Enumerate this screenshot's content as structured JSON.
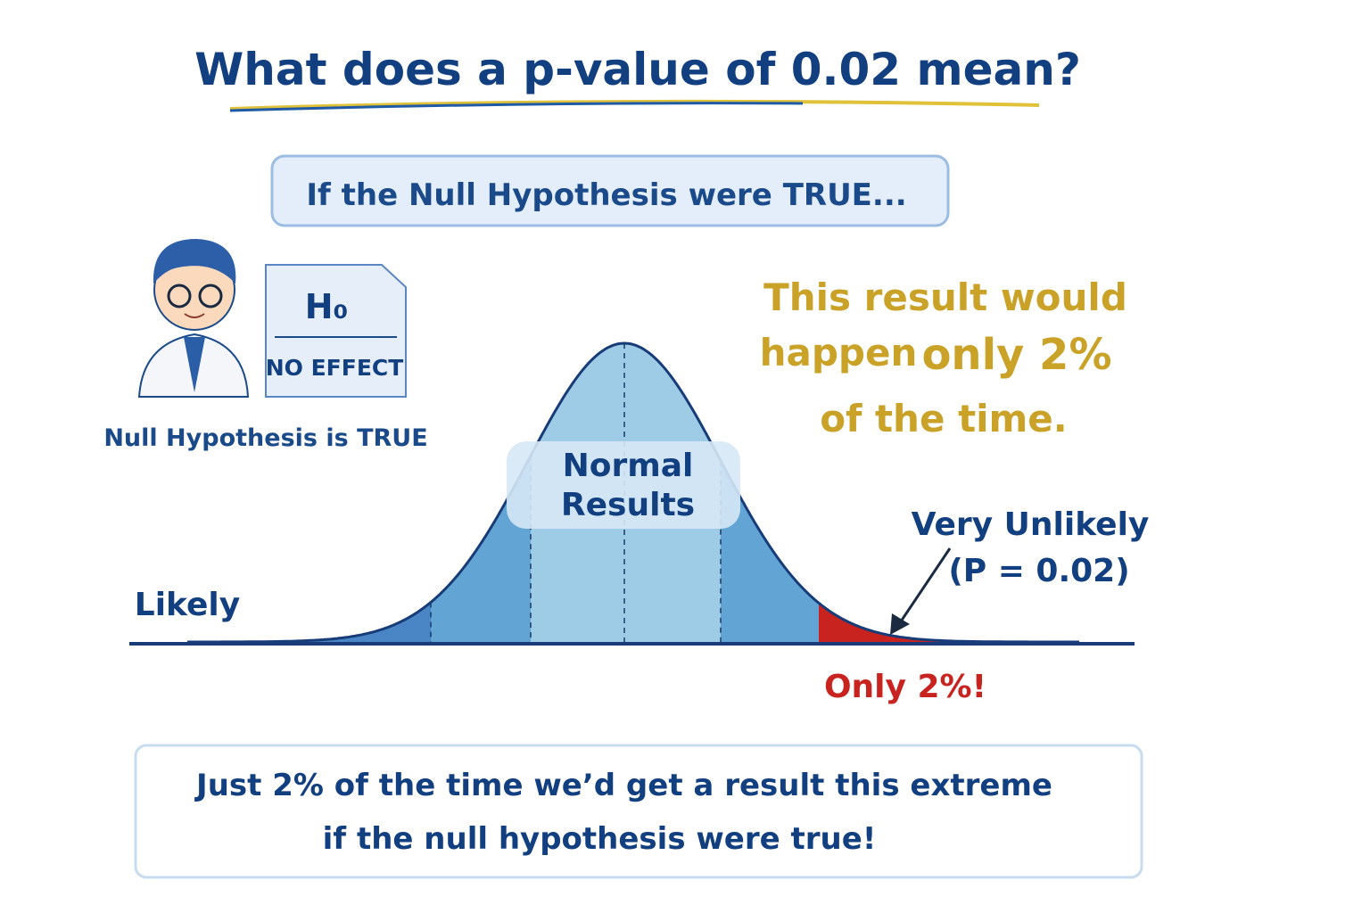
{
  "header": {
    "title": "What does a p-value of 0.02 mean?"
  },
  "banner": {
    "text": "If the Null Hypothesis were TRUE..."
  },
  "null_card": {
    "symbol": "H₀",
    "label": "NO EFFECT",
    "caption": "Null Hypothesis is TRUE"
  },
  "callout": {
    "line1": "This result would",
    "line2": "happen",
    "emphasis": "only 2%",
    "line3": "of the time."
  },
  "curve": {
    "center_label": [
      "Normal",
      "Results"
    ],
    "left_label": "Likely",
    "tail_label": "Very Unlikely",
    "tail_value": "(P = 0.02)",
    "tail_note": "Only 2%!"
  },
  "footer": {
    "lines": [
      "Just 2% of the time we’d get a result this extreme",
      "if the null hypothesis were true!"
    ]
  }
}
